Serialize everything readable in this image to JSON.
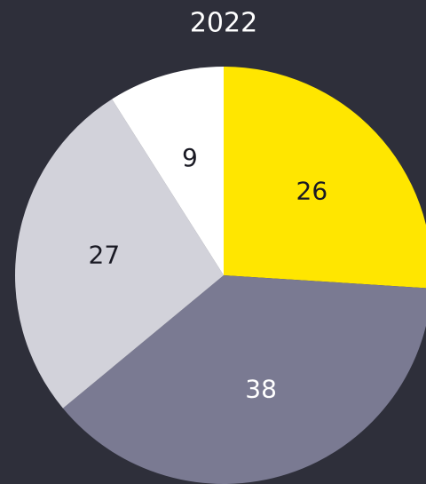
{
  "chart_data": {
    "type": "pie",
    "title": "2022",
    "categories": [
      null,
      null,
      null,
      null
    ],
    "values": [
      26,
      38,
      27,
      9
    ],
    "colors": [
      "#ffe600",
      "#7a7a92",
      "#d2d2da",
      "#ffffff"
    ],
    "label_colors": [
      "#1a1a24",
      "#ffffff",
      "#1a1a24",
      "#1a1a24"
    ],
    "background": "#2e2f3a"
  }
}
